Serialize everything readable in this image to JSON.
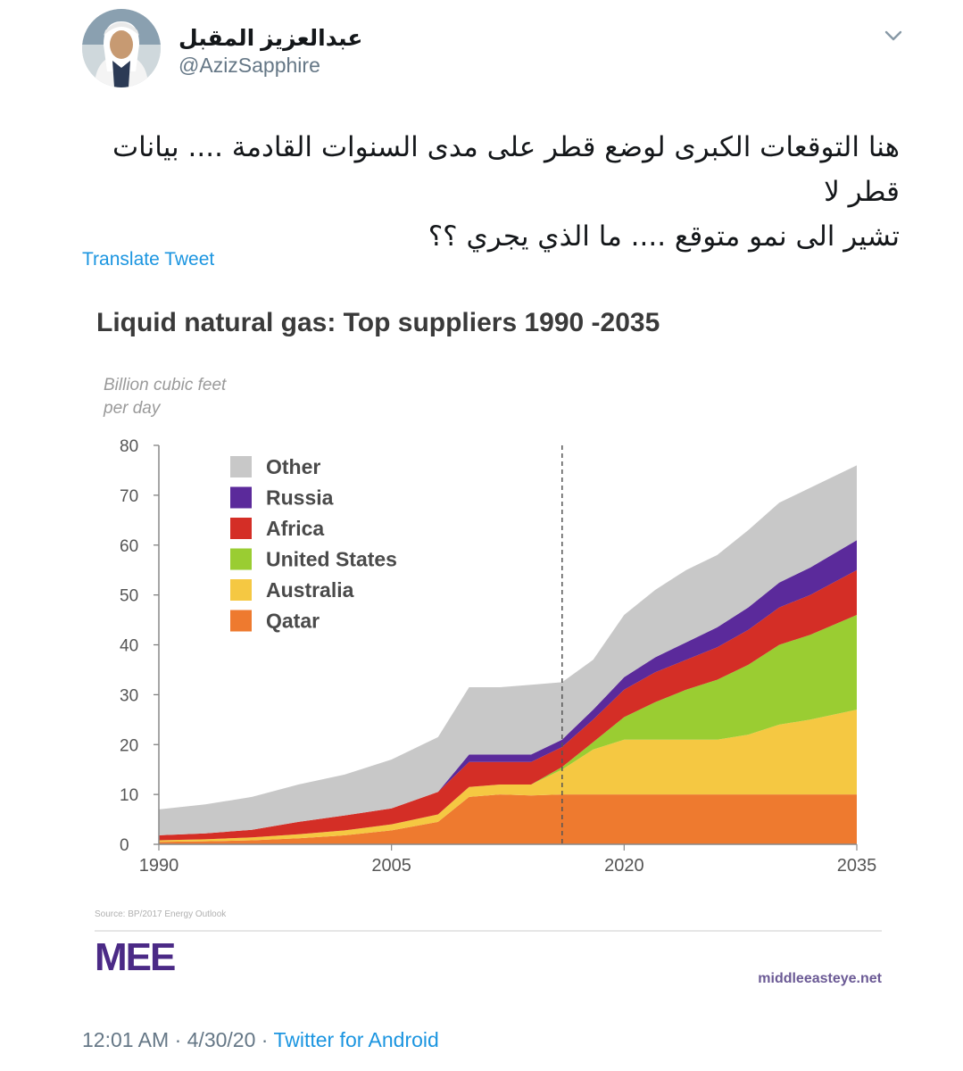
{
  "user": {
    "display_name": "عبدالعزيز المقبل",
    "handle": "@AzizSapphire"
  },
  "icons": {
    "more": "chevron-down-icon",
    "avatar": "avatar-photo"
  },
  "tweet": {
    "line1": "هنا التوقعات الكبرى لوضع قطر على مدى السنوات القادمة .... بيانات قطر لا",
    "line2": "تشير الى نمو متوقع .... ما الذي يجري ؟؟",
    "translate_label": "Translate Tweet"
  },
  "card": {
    "title": "Liquid natural gas: Top suppliers 1990 -2035",
    "source_note": "Source: BP/2017 Energy Outlook",
    "logo_text": "MEE",
    "site": "middleeasteye.net"
  },
  "chart_data": {
    "type": "area",
    "stacked": true,
    "title": "Liquid natural gas: Top suppliers 1990 -2035",
    "ylabel": "Billion cubic feet per day",
    "xlabel": "",
    "ylim": [
      0,
      80
    ],
    "yticks": [
      0,
      10,
      20,
      30,
      40,
      50,
      60,
      70,
      80
    ],
    "xticks": [
      1990,
      2005,
      2020,
      2035
    ],
    "forecast_divider_year": 2016,
    "x": [
      1990,
      1993,
      1996,
      1999,
      2002,
      2005,
      2008,
      2010,
      2012,
      2014,
      2016,
      2018,
      2020,
      2022,
      2024,
      2026,
      2028,
      2030,
      2032,
      2035
    ],
    "series": [
      {
        "name": "Qatar",
        "color": "#ee7a2f",
        "values": [
          0.5,
          0.6,
          0.8,
          1.2,
          1.8,
          2.8,
          4.5,
          9.5,
          10,
          9.8,
          10,
          10,
          10,
          10,
          10,
          10,
          10,
          10,
          10,
          10
        ]
      },
      {
        "name": "Australia",
        "color": "#f5c842",
        "values": [
          0.3,
          0.4,
          0.6,
          0.8,
          1.0,
          1.2,
          1.5,
          2.0,
          2.0,
          2.2,
          5.0,
          9.0,
          11,
          11,
          11,
          11,
          12,
          14,
          15,
          17
        ]
      },
      {
        "name": "United States",
        "color": "#9acd32",
        "values": [
          0,
          0,
          0,
          0,
          0,
          0,
          0,
          0,
          0,
          0,
          0.5,
          1.5,
          4.5,
          7.5,
          10,
          12,
          14,
          16,
          17,
          19
        ]
      },
      {
        "name": "Africa",
        "color": "#d42e26",
        "values": [
          1.0,
          1.2,
          1.5,
          2.5,
          3.0,
          3.2,
          4.5,
          5.0,
          4.5,
          4.5,
          4.0,
          4.5,
          5.5,
          6.0,
          6.0,
          6.5,
          7.0,
          7.5,
          8.0,
          9.0
        ]
      },
      {
        "name": "Russia",
        "color": "#5b2a9b",
        "values": [
          0,
          0,
          0,
          0,
          0,
          0,
          0,
          1.5,
          1.5,
          1.5,
          1.5,
          2.0,
          2.5,
          3.0,
          3.5,
          4.0,
          4.5,
          5.0,
          5.5,
          6.0
        ]
      },
      {
        "name": "Other",
        "color": "#c8c8c8",
        "values": [
          5.2,
          5.8,
          6.6,
          7.5,
          8.2,
          9.8,
          11,
          13.5,
          13.5,
          14.0,
          11.5,
          10.0,
          12.5,
          13.5,
          14.5,
          14.5,
          15.5,
          16.0,
          16.0,
          15.0
        ]
      }
    ],
    "legend": [
      "Other",
      "Russia",
      "Africa",
      "United States",
      "Australia",
      "Qatar"
    ],
    "legend_position": "top-left"
  },
  "footer": {
    "time": "12:01 AM",
    "date": "4/30/20",
    "source": "Twitter for Android",
    "sep": "·"
  }
}
